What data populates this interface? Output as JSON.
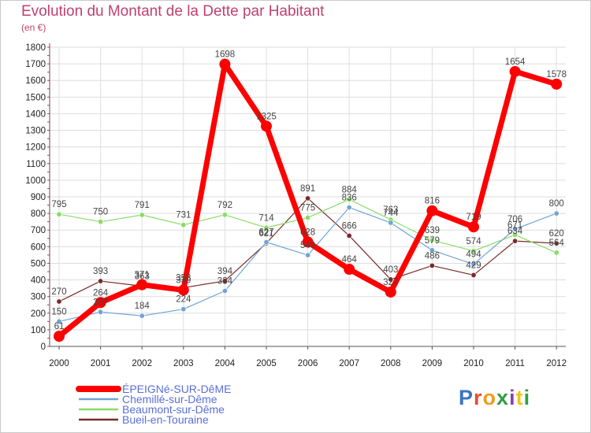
{
  "title": "Evolution du Montant de la Dette par Habitant",
  "subtitle": "(en €)",
  "logo": {
    "text": "Proxiti",
    "letter_colors": [
      "#3a74c4",
      "#e84b35",
      "#f29b1d",
      "#2f9e44",
      "#8a3fb8",
      "#f2c416",
      "#2f9e44"
    ]
  },
  "chart_data": {
    "type": "line",
    "x": [
      "2000",
      "2001",
      "2002",
      "2003",
      "2004",
      "2005",
      "2006",
      "2007",
      "2008",
      "2009",
      "2010",
      "2011",
      "2012"
    ],
    "ylim": [
      0,
      1800
    ],
    "yticks": [
      0,
      100,
      200,
      300,
      400,
      500,
      600,
      700,
      800,
      900,
      1000,
      1100,
      1200,
      1300,
      1400,
      1500,
      1600,
      1700,
      1800
    ],
    "grid": true,
    "legend_position": "bottom-left",
    "series": [
      {
        "name": "ÉPEIGNé-SUR-DêME",
        "color": "#ff0000",
        "width": 7,
        "marker": 7,
        "values": [
          61,
          264,
          371,
          339,
          1698,
          1325,
          628,
          464,
          327,
          816,
          719,
          1654,
          1578
        ],
        "labels": [
          "61",
          "264",
          "371",
          "339",
          "1698",
          "1325",
          "628",
          "464",
          "327",
          "816",
          "719",
          "1654",
          "1578"
        ]
      },
      {
        "name": "Chemillé-sur-Dême",
        "color": "#6fa4d6",
        "width": 1.2,
        "marker": 3.2,
        "values": [
          150,
          207,
          184,
          224,
          334,
          627,
          549,
          836,
          744,
          579,
          494,
          706,
          800
        ],
        "labels": [
          "150",
          "207",
          "184",
          "224",
          "334",
          "627",
          "549",
          "836",
          "744",
          "579",
          "494",
          "706",
          "800"
        ]
      },
      {
        "name": "Beaumont-sur-Dême",
        "color": "#88dd66",
        "width": 1.2,
        "marker": 3.2,
        "values": [
          795,
          750,
          791,
          731,
          792,
          714,
          775,
          884,
          763,
          639,
          574,
          671,
          564
        ],
        "labels": [
          "795",
          "750",
          "791",
          "731",
          "792",
          "714",
          "775",
          "884",
          "763",
          "639",
          "574",
          "671",
          "564"
        ]
      },
      {
        "name": "Bueil-en-Touraine",
        "color": "#7a2a2a",
        "width": 1.2,
        "marker": 3.2,
        "values": [
          270,
          393,
          363,
          353,
          394,
          621,
          891,
          666,
          403,
          486,
          429,
          634,
          620
        ],
        "labels": [
          "270",
          "393",
          "363",
          "353",
          "394",
          "621",
          "891",
          "666",
          "403",
          "486",
          "429",
          "634",
          "620"
        ]
      }
    ]
  }
}
